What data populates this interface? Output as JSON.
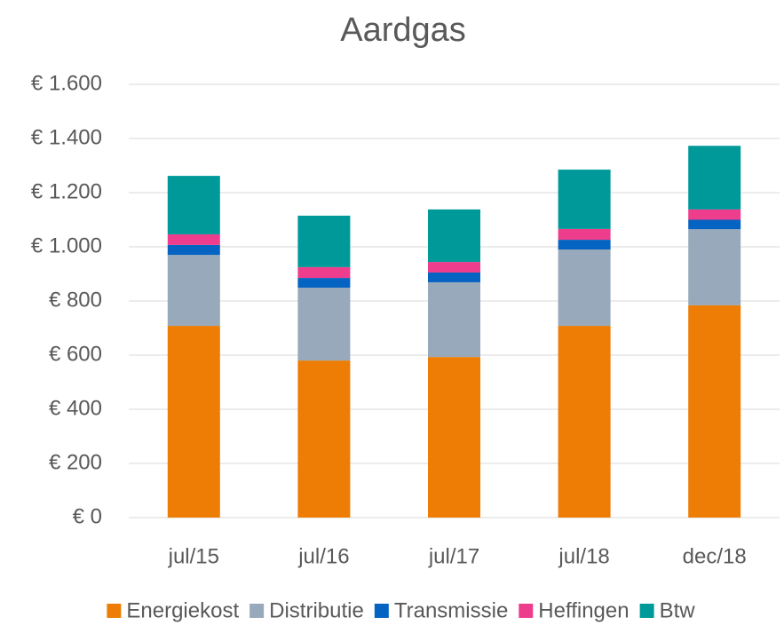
{
  "chart_data": {
    "type": "stacked_bar",
    "title": "Aardgas",
    "categories": [
      "jul/15",
      "jul/16",
      "jul/17",
      "jul/18",
      "dec/18"
    ],
    "series": [
      {
        "name": "Energiekost",
        "color": "#ED7D05",
        "values": [
          708,
          580,
          593,
          708,
          784
        ]
      },
      {
        "name": "Distributie",
        "color": "#97A9BB",
        "values": [
          262,
          269,
          276,
          282,
          281
        ]
      },
      {
        "name": "Transmissie",
        "color": "#0563C1",
        "values": [
          37,
          36,
          36,
          36,
          35
        ]
      },
      {
        "name": "Heffingen",
        "color": "#EE3D8C",
        "values": [
          39,
          40,
          39,
          40,
          38
        ]
      },
      {
        "name": "Btw",
        "color": "#009999",
        "values": [
          216,
          190,
          194,
          219,
          235
        ]
      }
    ],
    "ylim": [
      0,
      1600
    ],
    "yticks": [
      {
        "value": 0,
        "label": "€ 0"
      },
      {
        "value": 200,
        "label": "€ 200"
      },
      {
        "value": 400,
        "label": "€ 400"
      },
      {
        "value": 600,
        "label": "€ 600"
      },
      {
        "value": 800,
        "label": "€ 800"
      },
      {
        "value": 1000,
        "label": "€ 1.000"
      },
      {
        "value": 1200,
        "label": "€ 1.200"
      },
      {
        "value": 1400,
        "label": "€ 1.400"
      },
      {
        "value": 1600,
        "label": "€ 1.600"
      }
    ],
    "grid": true,
    "legend": "bottom"
  }
}
